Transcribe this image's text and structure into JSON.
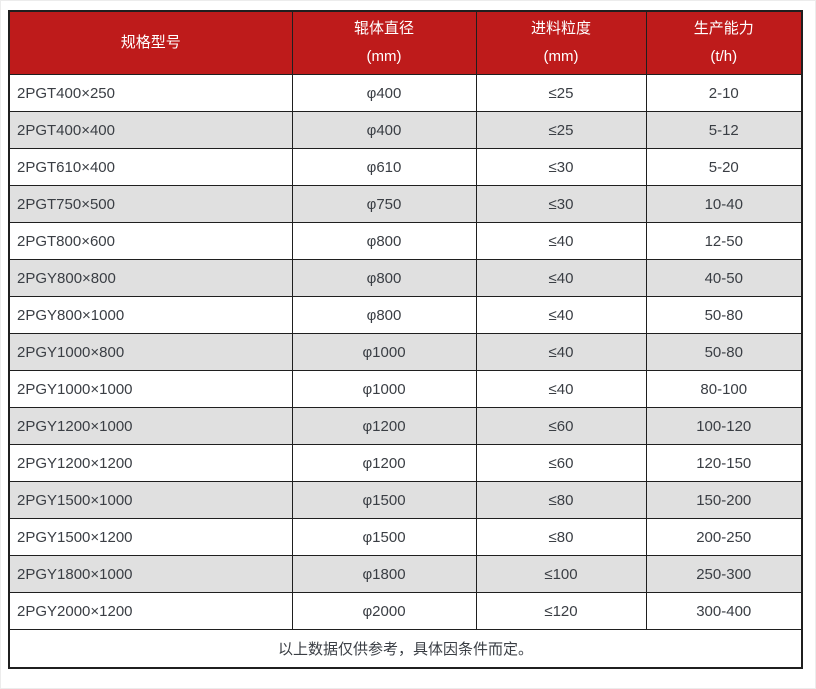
{
  "colors": {
    "header_bg": "#be1b1b",
    "header_text": "#ffffff",
    "row_bg": "#ffffff",
    "row_alt_bg": "#e0e0e0",
    "border": "#1f1f1f",
    "body_text": "#3a3e44"
  },
  "table": {
    "header": [
      {
        "label": "规格型号",
        "unit": ""
      },
      {
        "label": "辊体直径",
        "unit": "(mm)"
      },
      {
        "label": "进料粒度",
        "unit": "(mm)"
      },
      {
        "label": "生产能力",
        "unit": "(t/h)"
      }
    ],
    "footer_note": "以上数据仅供参考，具体因条件而定。"
  },
  "chart_data": {
    "type": "table",
    "columns": [
      "规格型号",
      "辊体直径 (mm)",
      "进料粒度 (mm)",
      "生产能力 (t/h)"
    ],
    "rows": [
      [
        "2PGT400×250",
        "φ400",
        "≤25",
        "2-10"
      ],
      [
        "2PGT400×400",
        "φ400",
        "≤25",
        "5-12"
      ],
      [
        "2PGT610×400",
        "φ610",
        "≤30",
        "5-20"
      ],
      [
        "2PGT750×500",
        "φ750",
        "≤30",
        "10-40"
      ],
      [
        "2PGT800×600",
        "φ800",
        "≤40",
        "12-50"
      ],
      [
        "2PGY800×800",
        "φ800",
        "≤40",
        "40-50"
      ],
      [
        "2PGY800×1000",
        "φ800",
        "≤40",
        "50-80"
      ],
      [
        "2PGY1000×800",
        "φ1000",
        "≤40",
        "50-80"
      ],
      [
        "2PGY1000×1000",
        "φ1000",
        "≤40",
        "80-100"
      ],
      [
        "2PGY1200×1000",
        "φ1200",
        "≤60",
        "100-120"
      ],
      [
        "2PGY1200×1200",
        "φ1200",
        "≤60",
        "120-150"
      ],
      [
        "2PGY1500×1000",
        "φ1500",
        "≤80",
        "150-200"
      ],
      [
        "2PGY1500×1200",
        "φ1500",
        "≤80",
        "200-250"
      ],
      [
        "2PGY1800×1000",
        "φ1800",
        "≤100",
        "250-300"
      ],
      [
        "2PGY2000×1200",
        "φ2000",
        "≤120",
        "300-400"
      ]
    ],
    "footer_note": "以上数据仅供参考，具体因条件而定。",
    "layout": {
      "striped": true,
      "header_position": "top"
    }
  }
}
